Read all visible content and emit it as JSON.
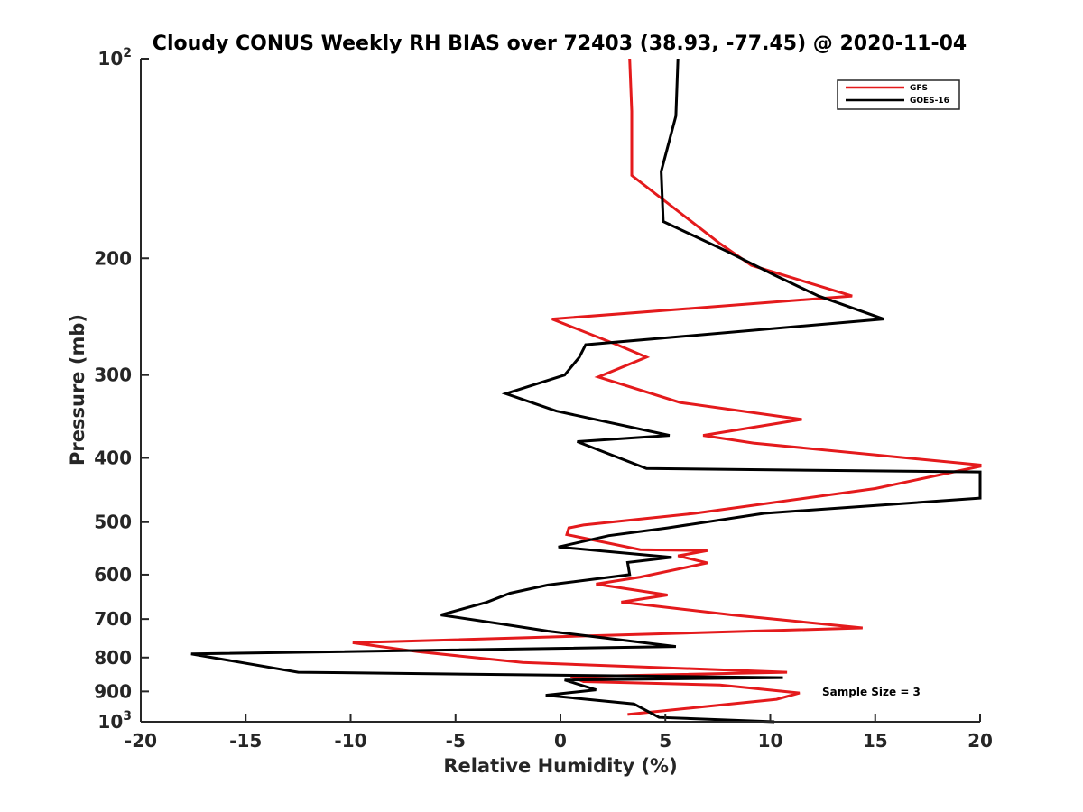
{
  "chart_data": {
    "type": "line",
    "title": "Cloudy CONUS Weekly RH BIAS over 72403 (38.93, -77.45) @ 2020-11-04",
    "xlabel": "Relative Humidity (%)",
    "ylabel": "Pressure (mb)",
    "xlim": [
      -20,
      20
    ],
    "ylim": [
      100,
      1000
    ],
    "yscale": "log",
    "yreversed": true,
    "grid": false,
    "legend_position": "top-right",
    "x_ticks": [
      {
        "value": -20,
        "label": "-20"
      },
      {
        "value": -15,
        "label": "-15"
      },
      {
        "value": -10,
        "label": "-10"
      },
      {
        "value": -5,
        "label": "-5"
      },
      {
        "value": 0,
        "label": "0"
      },
      {
        "value": 5,
        "label": "5"
      },
      {
        "value": 10,
        "label": "10"
      },
      {
        "value": 15,
        "label": "15"
      },
      {
        "value": 20,
        "label": "20"
      }
    ],
    "y_ticks": [
      {
        "value": 100,
        "base": "10",
        "exp": "2"
      },
      {
        "value": 200,
        "base": "200",
        "exp": ""
      },
      {
        "value": 300,
        "base": "300",
        "exp": ""
      },
      {
        "value": 400,
        "base": "400",
        "exp": ""
      },
      {
        "value": 500,
        "base": "500",
        "exp": ""
      },
      {
        "value": 600,
        "base": "600",
        "exp": ""
      },
      {
        "value": 700,
        "base": "700",
        "exp": ""
      },
      {
        "value": 800,
        "base": "800",
        "exp": ""
      },
      {
        "value": 900,
        "base": "900",
        "exp": ""
      },
      {
        "value": 1000,
        "base": "10",
        "exp": "3"
      }
    ],
    "annotation": "Sample Size = 3",
    "series": [
      {
        "name": "GFS",
        "color": "#e41a1c",
        "x": [
          3.3,
          3.4,
          3.4,
          7.6,
          9.1,
          13.9,
          -0.4,
          2.7,
          4.1,
          1.8,
          5.7,
          11.5,
          6.8,
          9.2,
          20.0,
          20.0,
          15.0,
          6.4,
          1.1,
          0.4,
          0.3,
          3.8,
          7.0,
          5.6,
          7.0,
          3.8,
          1.7,
          5.1,
          2.9,
          8.2,
          14.4,
          -9.9,
          -6.8,
          -1.8,
          10.8,
          0.5,
          1.1,
          7.6,
          11.4,
          10.3,
          3.2
        ],
        "y": [
          100,
          120,
          150,
          190,
          205,
          228,
          247,
          270,
          282,
          302,
          330,
          350,
          370,
          380,
          410,
          412,
          445,
          485,
          505,
          510,
          522,
          550,
          552,
          562,
          576,
          605,
          620,
          644,
          660,
          690,
          722,
          760,
          784,
          814,
          842,
          855,
          870,
          880,
          905,
          925,
          975
        ]
      },
      {
        "name": "GOES-16",
        "color": "#000000",
        "x": [
          5.6,
          5.5,
          4.8,
          4.9,
          7.9,
          10.2,
          12.3,
          15.4,
          1.2,
          0.9,
          0.2,
          -2.6,
          -0.2,
          5.2,
          0.8,
          4.1,
          20.0,
          20.0,
          9.7,
          5.1,
          2.3,
          -0.1,
          5.3,
          3.2,
          3.3,
          -0.6,
          -2.4,
          -3.5,
          -5.7,
          -2.8,
          -0.6,
          5.5,
          -17.6,
          -12.5,
          10.6,
          0.2,
          1.7,
          -0.7,
          3.5,
          4.7,
          10.2
        ],
        "y": [
          100,
          122,
          148,
          176,
          195,
          212,
          228,
          247,
          270,
          282,
          300,
          320,
          340,
          370,
          378,
          415,
          420,
          460,
          485,
          510,
          524,
          545,
          565,
          575,
          600,
          622,
          640,
          660,
          690,
          712,
          730,
          770,
          790,
          842,
          858,
          865,
          895,
          912,
          940,
          985,
          1000
        ]
      }
    ]
  }
}
